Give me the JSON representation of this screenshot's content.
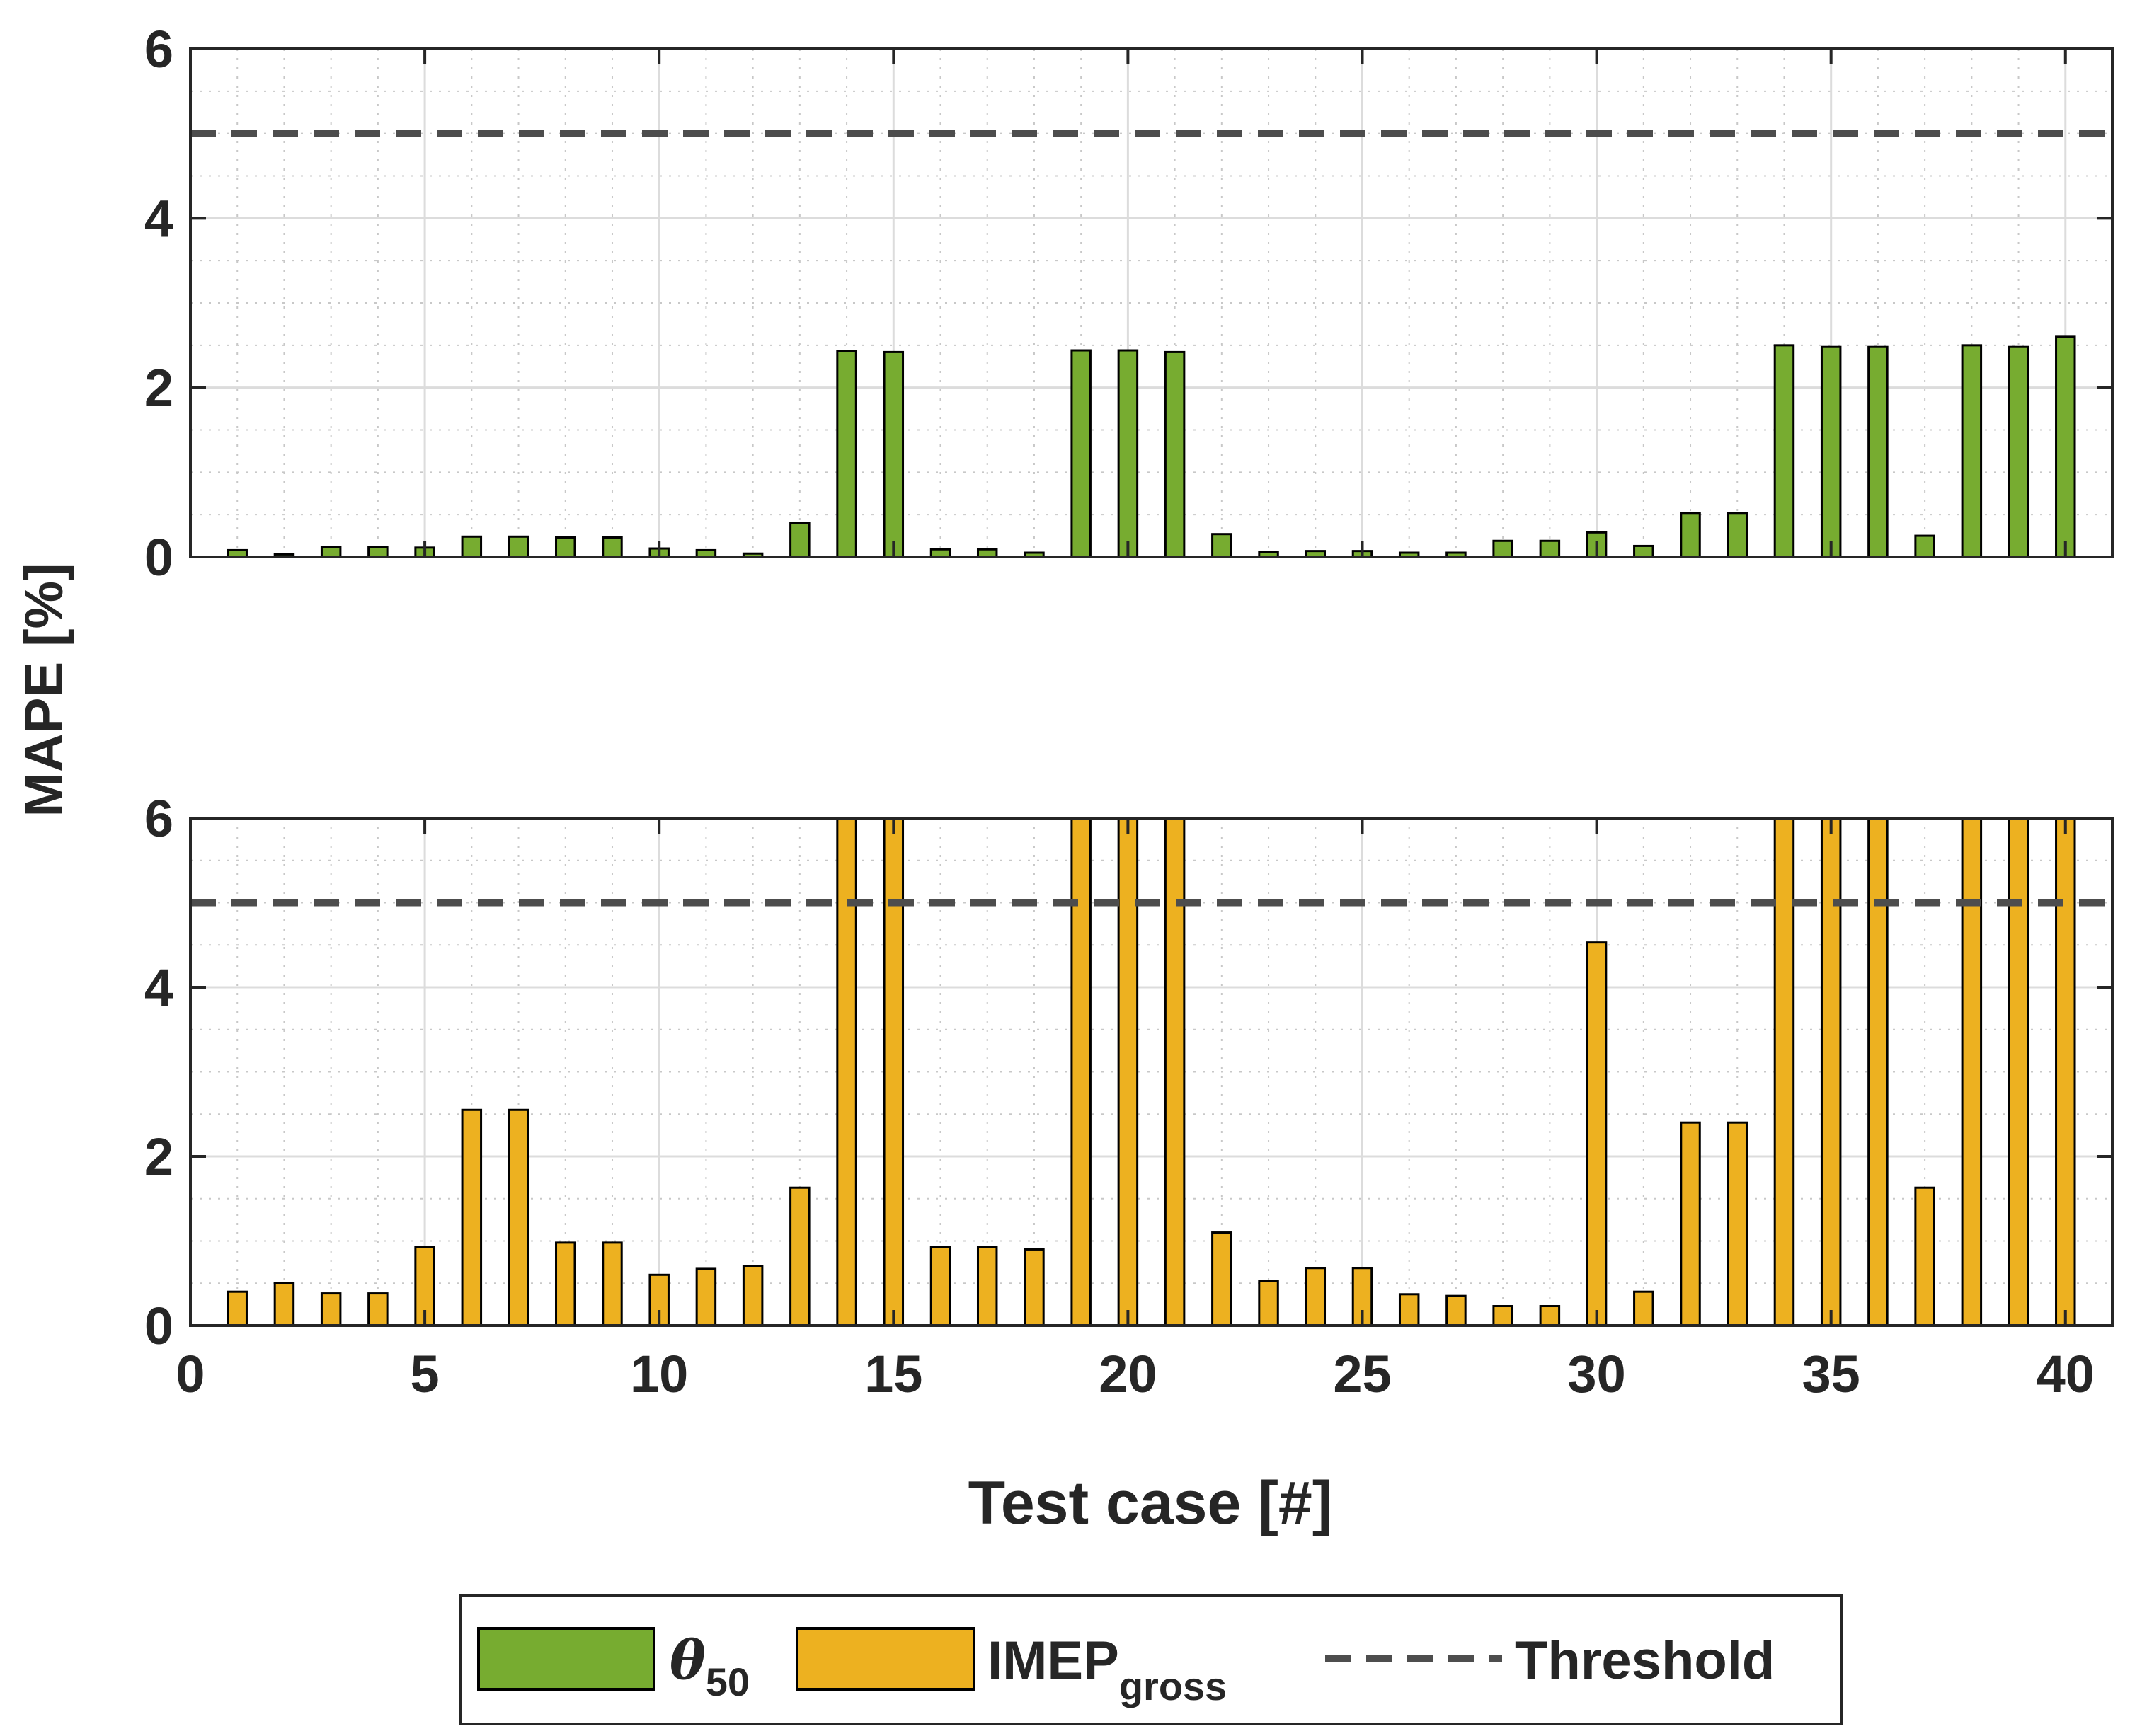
{
  "figure": {
    "ylabel": "MAPE [%]",
    "xlabel": "Test case [#]"
  },
  "legend": {
    "placement": "bottom-center",
    "entries": [
      {
        "key": "theta",
        "main": "θ",
        "sub": "50",
        "color": "#77AC30"
      },
      {
        "key": "imep",
        "main": "IMEP",
        "sub": "gross",
        "color": "#EDB120"
      },
      {
        "key": "threshold",
        "main": "Threshold",
        "sub": "",
        "color": "#4d4d4d",
        "style": "dashed"
      }
    ]
  },
  "chart_data": [
    {
      "type": "bar",
      "series_name": "θ50",
      "color": "#77AC30",
      "x": [
        1,
        2,
        3,
        4,
        5,
        6,
        7,
        8,
        9,
        10,
        11,
        12,
        13,
        14,
        15,
        16,
        17,
        18,
        19,
        20,
        21,
        22,
        23,
        24,
        25,
        26,
        27,
        28,
        29,
        30,
        31,
        32,
        33,
        34,
        35,
        36,
        37,
        38,
        39,
        40
      ],
      "values": [
        0.08,
        0.03,
        0.12,
        0.12,
        0.11,
        0.24,
        0.24,
        0.23,
        0.23,
        0.1,
        0.08,
        0.04,
        0.4,
        2.43,
        2.42,
        0.09,
        0.09,
        0.05,
        2.44,
        2.44,
        2.42,
        0.27,
        0.06,
        0.07,
        0.07,
        0.05,
        0.05,
        0.19,
        0.19,
        0.29,
        0.13,
        0.52,
        0.52,
        2.5,
        2.48,
        2.48,
        0.25,
        2.5,
        2.48,
        2.6
      ],
      "threshold": 5,
      "xlim": [
        0,
        41
      ],
      "ylim": [
        0,
        6
      ],
      "xticks": [
        0,
        5,
        10,
        15,
        20,
        25,
        30,
        35,
        40
      ],
      "yticks": [
        0,
        2,
        4,
        6
      ],
      "grid": true,
      "minor_grid": true
    },
    {
      "type": "bar",
      "series_name": "IMEPgross",
      "color": "#EDB120",
      "x": [
        1,
        2,
        3,
        4,
        5,
        6,
        7,
        8,
        9,
        10,
        11,
        12,
        13,
        14,
        15,
        16,
        17,
        18,
        19,
        20,
        21,
        22,
        23,
        24,
        25,
        26,
        27,
        28,
        29,
        30,
        31,
        32,
        33,
        34,
        35,
        36,
        37,
        38,
        39,
        40
      ],
      "values": [
        0.4,
        0.5,
        0.38,
        0.38,
        0.93,
        2.55,
        2.55,
        0.98,
        0.98,
        0.6,
        0.67,
        0.7,
        1.63,
        6.0,
        6.0,
        0.93,
        0.93,
        0.9,
        6.0,
        6.0,
        6.0,
        1.1,
        0.53,
        0.68,
        0.68,
        0.37,
        0.35,
        0.23,
        0.23,
        4.53,
        0.4,
        2.4,
        2.4,
        6.0,
        6.0,
        6.0,
        1.63,
        6.0,
        6.0,
        6.0
      ],
      "threshold": 5,
      "xlim": [
        0,
        41
      ],
      "ylim": [
        0,
        6
      ],
      "xticks": [
        0,
        5,
        10,
        15,
        20,
        25,
        30,
        35,
        40
      ],
      "yticks": [
        0,
        2,
        4,
        6
      ],
      "grid": true,
      "minor_grid": true
    }
  ]
}
